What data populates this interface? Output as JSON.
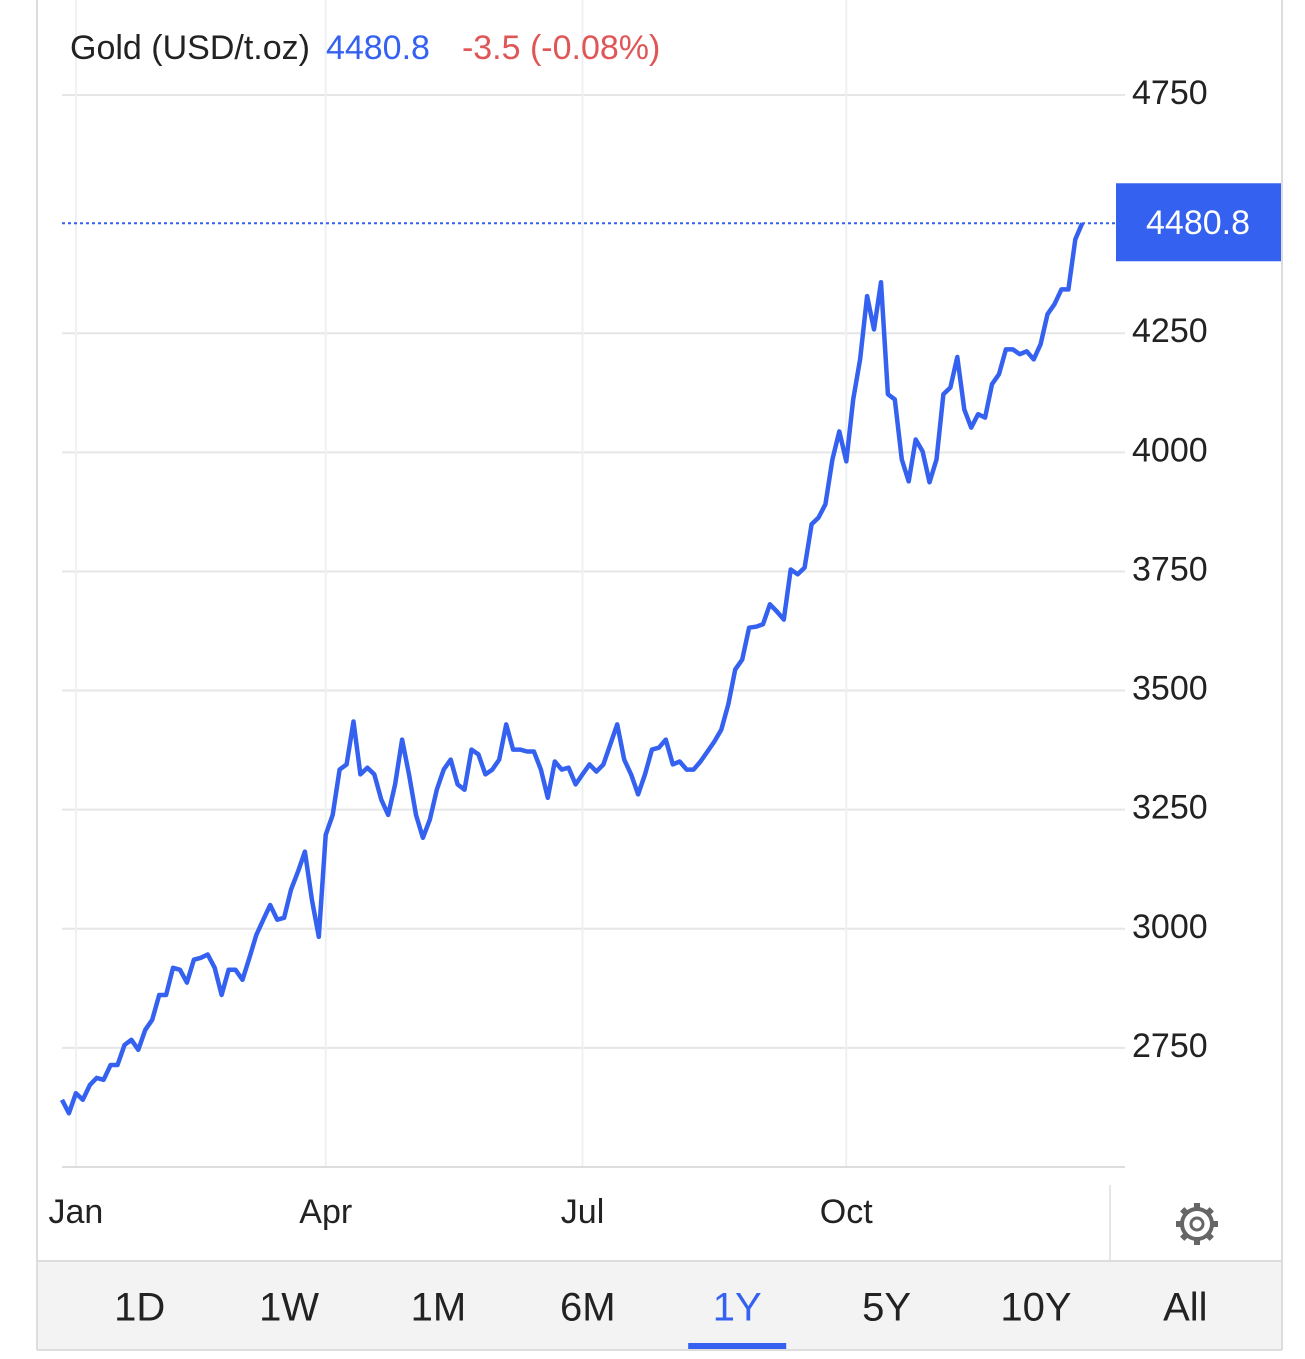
{
  "chart_data": {
    "type": "line",
    "title": "Gold (USD/t.oz)",
    "price": 4480.8,
    "change": "-3.5 (-0.08%)",
    "color": "#3461f0",
    "grid": true,
    "xlim": [
      0,
      151
    ],
    "xticks": [
      {
        "value": 2,
        "label": "Jan"
      },
      {
        "value": 38,
        "label": "Apr"
      },
      {
        "value": 75,
        "label": "Jul"
      },
      {
        "value": 113,
        "label": "Oct"
      }
    ],
    "ylim": [
      2500,
      4750
    ],
    "yticks": [
      2750,
      3000,
      3250,
      3500,
      3750,
      4000,
      4250,
      4750
    ],
    "values": [
      2641,
      2613,
      2655,
      2641,
      2672,
      2687,
      2683,
      2714,
      2714,
      2756,
      2767,
      2746,
      2788,
      2809,
      2861,
      2861,
      2918,
      2914,
      2887,
      2935,
      2939,
      2946,
      2918,
      2861,
      2914,
      2914,
      2893,
      2939,
      2987,
      3019,
      3050,
      3019,
      3023,
      3082,
      3120,
      3162,
      3061,
      2983,
      3197,
      3239,
      3334,
      3345,
      3435,
      3324,
      3338,
      3324,
      3271,
      3239,
      3303,
      3397,
      3324,
      3239,
      3191,
      3229,
      3292,
      3334,
      3355,
      3303,
      3292,
      3376,
      3366,
      3324,
      3334,
      3355,
      3429,
      3376,
      3376,
      3372,
      3372,
      3334,
      3275,
      3351,
      3334,
      3338,
      3303,
      3324,
      3345,
      3330,
      3345,
      3387,
      3429,
      3355,
      3324,
      3282,
      3324,
      3376,
      3380,
      3397,
      3345,
      3351,
      3334,
      3334,
      3351,
      3372,
      3393,
      3418,
      3471,
      3544,
      3565,
      3632,
      3634,
      3639,
      3681,
      3666,
      3649,
      3754,
      3744,
      3758,
      3849,
      3863,
      3891,
      3985,
      4044,
      3981,
      4111,
      4195,
      4328,
      4258,
      4357,
      4122,
      4111,
      3985,
      3939,
      4027,
      4002,
      3937,
      3985,
      4122,
      4136,
      4200,
      4090,
      4052,
      4080,
      4073,
      4143,
      4164,
      4216,
      4216,
      4206,
      4212,
      4195,
      4227,
      4290,
      4311,
      4342,
      4342,
      4447,
      4480.8
    ]
  },
  "ranges": [
    "1D",
    "1W",
    "1M",
    "6M",
    "1Y",
    "5Y",
    "10Y",
    "All"
  ],
  "active_range": "1Y"
}
